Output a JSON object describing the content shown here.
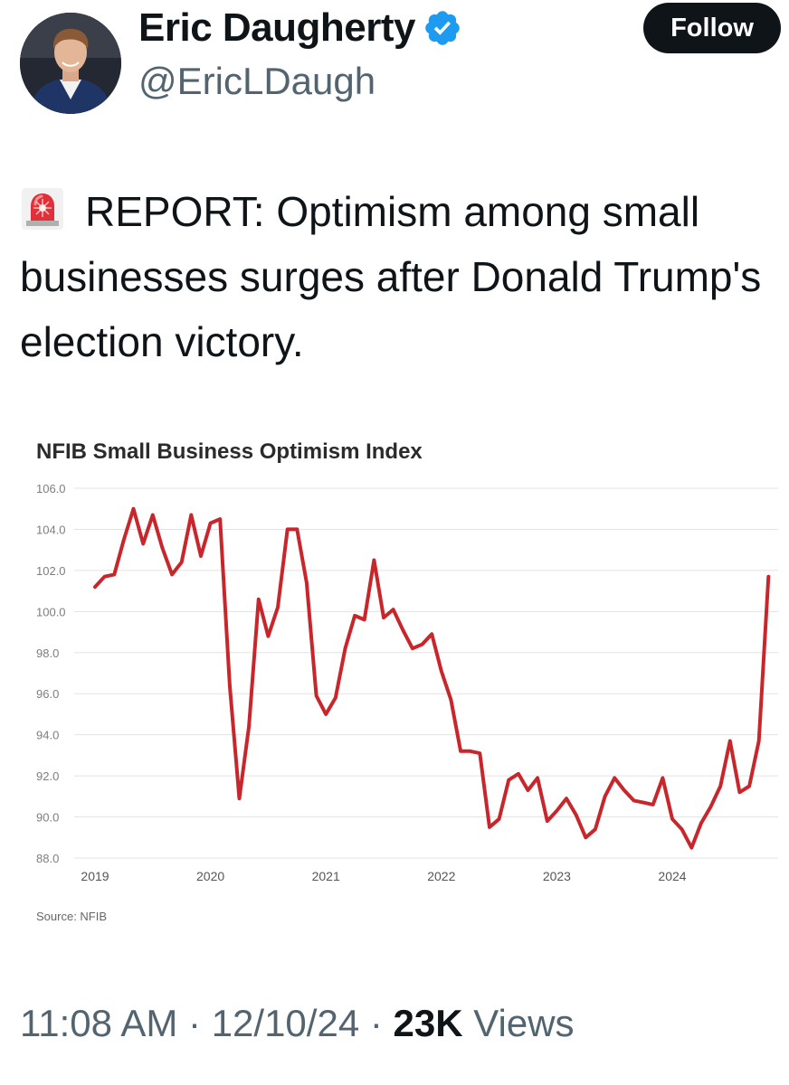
{
  "author": {
    "display_name": "Eric Daugherty",
    "handle": "@EricLDaugh",
    "verified_icon": "verified-badge-icon"
  },
  "follow_label": "Follow",
  "tweet": {
    "emoji_icon": "rotating-light-icon",
    "text": "REPORT: Optimism among small businesses surges after Donald Trump's election victory."
  },
  "meta": {
    "time": "11:08 AM",
    "separator": "·",
    "date": "12/10/24",
    "views_count": "23K",
    "views_label": "Views"
  },
  "colors": {
    "line": "#c9262c",
    "follow_bg": "#0f1419",
    "verified": "#1d9bf0"
  },
  "chart_data": {
    "type": "line",
    "title": "NFIB Small Business Optimism Index",
    "source": "Source: NFIB",
    "ylim": [
      88.0,
      106.0
    ],
    "y_ticks": [
      "106.0",
      "104.0",
      "102.0",
      "100.0",
      "98.0",
      "96.0",
      "94.0",
      "92.0",
      "90.0",
      "88.0"
    ],
    "x_ticks": [
      "2019",
      "2020",
      "2021",
      "2022",
      "2023",
      "2024"
    ],
    "grid": true,
    "series": [
      {
        "name": "",
        "x_start_year": 2019,
        "values": [
          101.2,
          101.7,
          101.8,
          103.5,
          105.0,
          103.3,
          104.7,
          103.1,
          101.8,
          102.4,
          104.7,
          102.7,
          104.3,
          104.5,
          96.4,
          90.9,
          94.4,
          100.6,
          98.8,
          100.2,
          104.0,
          104.0,
          101.4,
          95.9,
          95.0,
          95.8,
          98.2,
          99.8,
          99.6,
          102.5,
          99.7,
          100.1,
          99.1,
          98.2,
          98.4,
          98.9,
          97.1,
          95.7,
          93.2,
          93.2,
          93.1,
          89.5,
          89.9,
          91.8,
          92.1,
          91.3,
          91.9,
          89.8,
          90.3,
          90.9,
          90.1,
          89.0,
          89.4,
          91.0,
          91.9,
          91.3,
          90.8,
          90.7,
          90.6,
          91.9,
          89.9,
          89.4,
          88.5,
          89.7,
          90.5,
          91.5,
          93.7,
          91.2,
          91.5,
          93.7,
          101.7
        ]
      }
    ]
  }
}
